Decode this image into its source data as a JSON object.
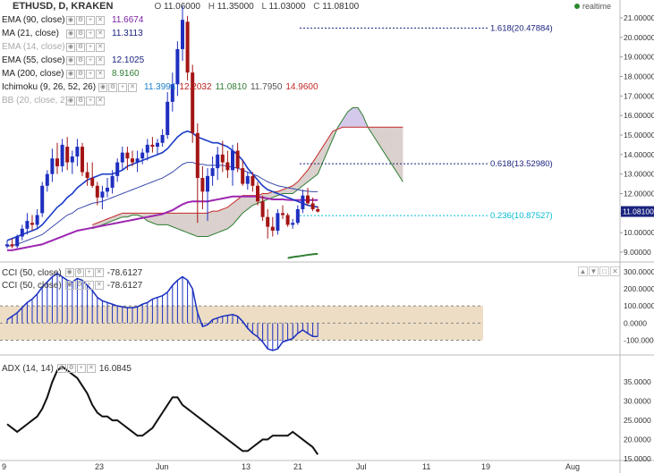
{
  "header": {
    "symbol_title": "ETHUSD, D, KRAKEN",
    "ohlc": {
      "o_label": "O",
      "o": "11.06000",
      "h_label": "H",
      "h": "11.35000",
      "l_label": "L",
      "l": "11.03000",
      "c_label": "C",
      "c": "11.08100"
    },
    "realtime_label": "realtime"
  },
  "indicators": [
    {
      "name": "EMA (90, close)",
      "value": "11.6674",
      "color": "#7b1fa2"
    },
    {
      "name": "MA (21, close)",
      "value": "11.3113",
      "color": "#1a237e"
    },
    {
      "name": "EMA (14, close)",
      "value": "",
      "color": "#aaaaaa",
      "dim": true
    },
    {
      "name": "EMA (55, close)",
      "value": "12.1025",
      "color": "#1a237e"
    },
    {
      "name": "MA (200, close)",
      "value": "8.9160",
      "color": "#2e7d32"
    },
    {
      "name": "Ichimoku (9, 26, 52, 26)",
      "values": [
        "11.3994",
        "12.2032",
        "11.0810",
        "11.7950",
        "14.9600"
      ],
      "colors": [
        "#1a7ec8",
        "#b71c1c",
        "#2e7d32",
        "#555555",
        "#c62828"
      ]
    },
    {
      "name": "BB (20, close, 2)",
      "value": "",
      "color": "#aaaaaa",
      "dim": true
    }
  ],
  "fib_labels": [
    {
      "label": "1.618(20.47884)",
      "price": 20.479,
      "x_start": "2017-06-21",
      "color": "#1a237e"
    },
    {
      "label": "0.618(13.52980)",
      "price": 13.53,
      "x_start": "2017-06-21",
      "color": "#1a237e"
    },
    {
      "label": "0.236(10.87527)",
      "price": 10.875,
      "x_start": "2017-06-21",
      "color": "#00bcd4"
    }
  ],
  "last_price_label": "11.08100",
  "last_price_color": "#1a237e",
  "cci_panel": {
    "legend": [
      {
        "name": "CCI (50, close)",
        "value": "-78.6127"
      },
      {
        "name": "CCI (50, close)",
        "value": "-78.6127"
      }
    ],
    "y_ticks": [
      "300.0000",
      "200.0000",
      "100.0000",
      "0.0000",
      "-100.0000"
    ],
    "band": [
      -100,
      100
    ]
  },
  "adx_panel": {
    "legend": {
      "name": "ADX (14, 14)",
      "value": "16.0845"
    },
    "y_ticks": [
      "35.0000",
      "30.0000",
      "25.0000",
      "20.0000",
      "15.0000"
    ]
  },
  "chart_data": {
    "type": "candlestick",
    "symbol": "ETHUSD",
    "interval": "D",
    "xaxis_ticks": [
      "9",
      "23",
      "Jun",
      "13",
      "21",
      "Jul",
      "11",
      "19",
      "Aug"
    ],
    "ylim": [
      9.0,
      21.0
    ],
    "y_ticks": [
      "21.00000",
      "20.00000",
      "19.00000",
      "18.00000",
      "17.00000",
      "16.00000",
      "15.00000",
      "14.00000",
      "13.00000",
      "12.00000",
      "11.00000",
      "10.00000",
      "9.00000"
    ],
    "candles": [
      [
        9.3,
        9.6,
        9.2,
        9.4
      ],
      [
        9.4,
        9.7,
        9.2,
        9.3
      ],
      [
        9.3,
        9.9,
        9.2,
        9.8
      ],
      [
        9.8,
        10.4,
        9.6,
        10.2
      ],
      [
        10.2,
        11.0,
        9.9,
        10.6
      ],
      [
        10.5,
        10.9,
        10.1,
        10.4
      ],
      [
        10.4,
        11.2,
        10.2,
        10.9
      ],
      [
        11.0,
        12.6,
        10.8,
        12.4
      ],
      [
        12.4,
        13.2,
        12.1,
        13.0
      ],
      [
        13.0,
        14.3,
        12.6,
        13.8
      ],
      [
        13.8,
        14.6,
        13.0,
        13.4
      ],
      [
        13.4,
        14.8,
        13.1,
        14.5
      ],
      [
        14.4,
        14.9,
        13.2,
        13.6
      ],
      [
        13.6,
        14.2,
        13.0,
        13.9
      ],
      [
        13.9,
        14.8,
        13.4,
        14.4
      ],
      [
        14.4,
        14.6,
        12.9,
        13.1
      ],
      [
        13.1,
        13.6,
        12.4,
        12.8
      ],
      [
        12.8,
        13.6,
        12.3,
        12.4
      ],
      [
        12.4,
        12.6,
        11.4,
        11.8
      ],
      [
        11.8,
        12.4,
        11.2,
        12.1
      ],
      [
        12.1,
        12.8,
        11.8,
        12.3
      ],
      [
        12.3,
        13.2,
        12.0,
        12.9
      ],
      [
        12.9,
        13.8,
        12.6,
        13.6
      ],
      [
        13.6,
        14.4,
        13.2,
        14.1
      ],
      [
        14.1,
        14.4,
        13.2,
        13.8
      ],
      [
        13.8,
        14.2,
        13.4,
        13.6
      ],
      [
        13.6,
        14.2,
        13.1,
        13.8
      ],
      [
        13.8,
        14.3,
        13.5,
        14.1
      ],
      [
        14.1,
        14.8,
        13.7,
        14.5
      ],
      [
        14.5,
        14.9,
        14.1,
        14.4
      ],
      [
        14.4,
        14.8,
        14.0,
        14.6
      ],
      [
        14.6,
        15.3,
        14.4,
        15.0
      ],
      [
        15.0,
        17.2,
        14.8,
        16.7
      ],
      [
        16.7,
        18.2,
        16.2,
        17.6
      ],
      [
        17.6,
        19.8,
        17.0,
        19.4
      ],
      [
        19.4,
        21.6,
        18.8,
        20.9
      ],
      [
        20.8,
        21.1,
        17.8,
        18.2
      ],
      [
        18.2,
        18.6,
        14.6,
        15.1
      ],
      [
        15.1,
        15.6,
        10.5,
        12.8
      ],
      [
        12.8,
        13.4,
        11.2,
        12.1
      ],
      [
        12.1,
        13.3,
        10.6,
        12.9
      ],
      [
        12.9,
        13.9,
        12.4,
        13.3
      ],
      [
        13.3,
        14.4,
        12.7,
        14.0
      ],
      [
        14.0,
        14.7,
        13.1,
        13.6
      ],
      [
        13.6,
        14.2,
        12.8,
        13.2
      ],
      [
        13.2,
        14.5,
        12.4,
        14.2
      ],
      [
        14.2,
        14.6,
        13.1,
        13.3
      ],
      [
        13.3,
        13.7,
        12.4,
        12.5
      ],
      [
        12.5,
        13.1,
        12.2,
        12.9
      ],
      [
        12.9,
        13.1,
        12.1,
        12.4
      ],
      [
        12.4,
        12.6,
        11.4,
        11.6
      ],
      [
        11.6,
        11.9,
        10.6,
        10.8
      ],
      [
        10.8,
        11.2,
        9.7,
        10.3
      ],
      [
        10.3,
        10.8,
        9.8,
        10.1
      ],
      [
        10.1,
        11.2,
        9.9,
        11.0
      ],
      [
        11.0,
        11.4,
        10.7,
        10.9
      ],
      [
        10.9,
        11.0,
        10.3,
        10.4
      ],
      [
        10.4,
        10.7,
        10.2,
        10.5
      ],
      [
        10.5,
        11.4,
        10.4,
        11.2
      ],
      [
        11.2,
        12.2,
        11.0,
        11.9
      ],
      [
        11.9,
        12.3,
        11.4,
        11.5
      ],
      [
        11.5,
        11.8,
        11.1,
        11.2
      ],
      [
        11.2,
        11.35,
        11.03,
        11.08
      ]
    ],
    "overlays": {
      "ma_21": [
        9.6,
        9.7,
        9.8,
        9.9,
        10.0,
        10.1,
        10.2,
        10.4,
        10.7,
        11.0,
        11.3,
        11.5,
        11.8,
        12.0,
        12.3,
        12.5,
        12.7,
        12.8,
        12.9,
        13.0,
        13.0,
        13.0,
        13.1,
        13.2,
        13.4,
        13.5,
        13.6,
        13.7,
        13.8,
        13.9,
        14.0,
        14.1,
        14.3,
        14.6,
        14.9,
        15.1,
        15.2,
        15.1,
        14.9,
        14.8,
        14.7,
        14.6,
        14.6,
        14.5,
        14.4,
        14.2,
        14.0,
        13.7,
        13.3,
        13.0,
        12.7,
        12.4,
        12.2,
        12.1,
        12.0,
        11.9,
        11.8,
        11.7,
        11.6,
        11.5,
        11.4,
        11.35,
        11.31
      ],
      "ema_90": [
        9.1,
        9.1,
        9.15,
        9.2,
        9.25,
        9.3,
        9.35,
        9.4,
        9.5,
        9.6,
        9.7,
        9.8,
        9.9,
        10.0,
        10.1,
        10.15,
        10.2,
        10.25,
        10.3,
        10.35,
        10.4,
        10.45,
        10.5,
        10.55,
        10.6,
        10.65,
        10.7,
        10.75,
        10.8,
        10.85,
        10.9,
        10.95,
        11.05,
        11.15,
        11.3,
        11.45,
        11.55,
        11.6,
        11.6,
        11.6,
        11.6,
        11.65,
        11.7,
        11.75,
        11.8,
        11.85,
        11.85,
        11.85,
        11.85,
        11.85,
        11.85,
        11.8,
        11.75,
        11.7,
        11.7,
        11.7,
        11.68,
        11.67,
        11.67,
        11.67,
        11.67,
        11.67,
        11.667
      ],
      "ema_55": [
        9.3,
        9.35,
        9.4,
        9.5,
        9.6,
        9.7,
        9.8,
        9.9,
        10.1,
        10.3,
        10.5,
        10.7,
        10.9,
        11.0,
        11.2,
        11.3,
        11.4,
        11.5,
        11.55,
        11.6,
        11.7,
        11.8,
        11.9,
        12.0,
        12.1,
        12.2,
        12.3,
        12.4,
        12.5,
        12.6,
        12.7,
        12.8,
        12.95,
        13.1,
        13.3,
        13.5,
        13.6,
        13.6,
        13.5,
        13.5,
        13.45,
        13.45,
        13.45,
        13.45,
        13.4,
        13.35,
        13.3,
        13.2,
        13.1,
        13.0,
        12.9,
        12.75,
        12.6,
        12.5,
        12.4,
        12.35,
        12.3,
        12.25,
        12.2,
        12.15,
        12.12,
        12.1,
        12.1
      ],
      "ma_200": [
        null,
        null,
        null,
        null,
        null,
        null,
        null,
        null,
        null,
        null,
        null,
        null,
        null,
        null,
        null,
        null,
        null,
        null,
        null,
        null,
        null,
        null,
        null,
        null,
        null,
        null,
        null,
        null,
        null,
        null,
        null,
        null,
        null,
        null,
        null,
        null,
        null,
        null,
        null,
        null,
        null,
        null,
        null,
        null,
        null,
        null,
        null,
        null,
        null,
        null,
        null,
        null,
        null,
        null,
        null,
        null,
        8.7,
        8.75,
        8.78,
        8.82,
        8.86,
        8.89,
        8.916
      ]
    },
    "ichimoku": {
      "span_a": [
        10.2,
        10.3,
        10.4,
        10.5,
        10.6,
        10.7,
        10.8,
        10.8,
        10.9,
        10.9,
        10.8,
        10.6,
        10.5,
        10.4,
        10.4,
        10.4,
        10.3,
        10.2,
        10.1,
        10.0,
        9.9,
        9.8,
        9.8,
        9.8,
        9.9,
        10.0,
        10.1,
        10.2,
        10.4,
        10.7,
        11.0,
        11.2,
        11.4,
        11.5,
        11.6,
        11.7,
        11.8,
        11.9,
        12.0,
        12.0,
        12.0,
        12.2,
        12.4,
        12.6,
        12.8,
        13.0,
        13.6,
        14.2,
        14.8,
        15.4,
        15.8,
        16.2,
        16.4,
        16.4,
        16.0,
        15.4,
        15.0,
        14.6,
        14.2,
        13.8,
        13.4,
        13.0,
        12.6
      ],
      "span_b": [
        10.4,
        10.5,
        10.6,
        10.7,
        10.8,
        10.9,
        11.0,
        11.0,
        11.0,
        11.0,
        11.0,
        11.0,
        11.0,
        11.0,
        11.0,
        11.0,
        11.0,
        11.0,
        11.0,
        11.0,
        11.0,
        11.0,
        11.0,
        11.0,
        11.1,
        11.1,
        11.2,
        11.3,
        11.5,
        11.7,
        11.9,
        11.9,
        11.9,
        11.9,
        12.0,
        12.0,
        12.1,
        12.1,
        12.2,
        12.3,
        12.4,
        12.6,
        12.9,
        13.2,
        13.6,
        14.0,
        14.4,
        14.8,
        15.2,
        15.3,
        15.4,
        15.4,
        15.4,
        15.4,
        15.4,
        15.4,
        15.4,
        15.4,
        15.4,
        15.4,
        15.4,
        15.4,
        15.4
      ]
    },
    "cci": [
      20,
      40,
      60,
      90,
      120,
      140,
      170,
      210,
      240,
      270,
      290,
      270,
      250,
      240,
      260,
      250,
      220,
      190,
      150,
      130,
      120,
      110,
      100,
      95,
      90,
      90,
      95,
      110,
      120,
      140,
      150,
      160,
      180,
      220,
      250,
      270,
      250,
      200,
      60,
      -20,
      -10,
      20,
      30,
      40,
      45,
      50,
      40,
      10,
      -30,
      -60,
      -80,
      -110,
      -150,
      -160,
      -150,
      -110,
      -100,
      -90,
      -60,
      -40,
      -60,
      -78,
      -78.6
    ],
    "adx": [
      24,
      23,
      22,
      23,
      24,
      25,
      26,
      28,
      31,
      35,
      38,
      39,
      38,
      37,
      36,
      34,
      32,
      29,
      27,
      26,
      26,
      25,
      25,
      24,
      23,
      22,
      21,
      21,
      22,
      23,
      25,
      27,
      29,
      31,
      31,
      29,
      28,
      27,
      26,
      25,
      24,
      23,
      22,
      21,
      20,
      19,
      18,
      17,
      17,
      18,
      19,
      20,
      20,
      21,
      21,
      21,
      21,
      22,
      21,
      20,
      19,
      18,
      16.1
    ]
  }
}
